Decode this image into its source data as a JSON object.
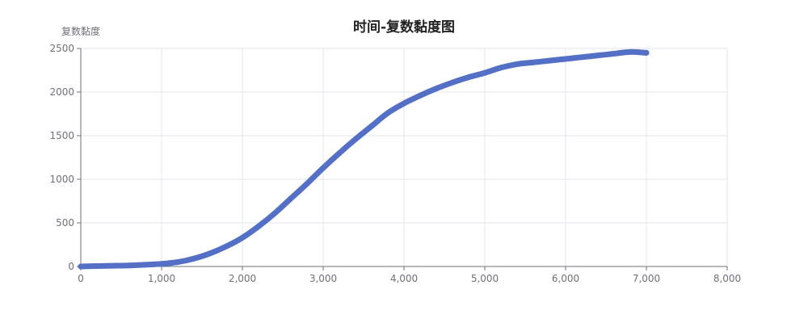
{
  "chart_data": {
    "type": "line",
    "title": "时间-复数黏度图",
    "xlabel": "",
    "ylabel": "复数黏度",
    "xlim": [
      0,
      8000
    ],
    "ylim": [
      0,
      2500
    ],
    "x_ticks": [
      "0",
      "1,000",
      "2,000",
      "3,000",
      "4,000",
      "5,000",
      "6,000",
      "7,000",
      "8,000"
    ],
    "y_ticks": [
      "0",
      "500",
      "1000",
      "1500",
      "2000",
      "2500"
    ],
    "grid": true,
    "legend": "none",
    "colors": {
      "series": "#5470c6",
      "grid": "#e0e6f1",
      "axis": "#6e7079",
      "title": "#222222"
    },
    "series": [
      {
        "x": [
          0,
          200,
          400,
          600,
          800,
          1000,
          1200,
          1400,
          1600,
          1800,
          2000,
          2200,
          2400,
          2600,
          2800,
          3000,
          3200,
          3400,
          3600,
          3800,
          4000,
          4200,
          4400,
          4600,
          4800,
          5000,
          5200,
          5400,
          5600,
          5800,
          6000,
          6200,
          6400,
          6600,
          6800,
          7000
        ],
        "values": [
          0,
          5,
          8,
          12,
          20,
          30,
          50,
          90,
          150,
          230,
          330,
          460,
          610,
          780,
          950,
          1130,
          1300,
          1460,
          1610,
          1760,
          1870,
          1960,
          2040,
          2110,
          2170,
          2220,
          2280,
          2320,
          2340,
          2360,
          2380,
          2400,
          2420,
          2440,
          2460,
          2450
        ]
      }
    ]
  }
}
